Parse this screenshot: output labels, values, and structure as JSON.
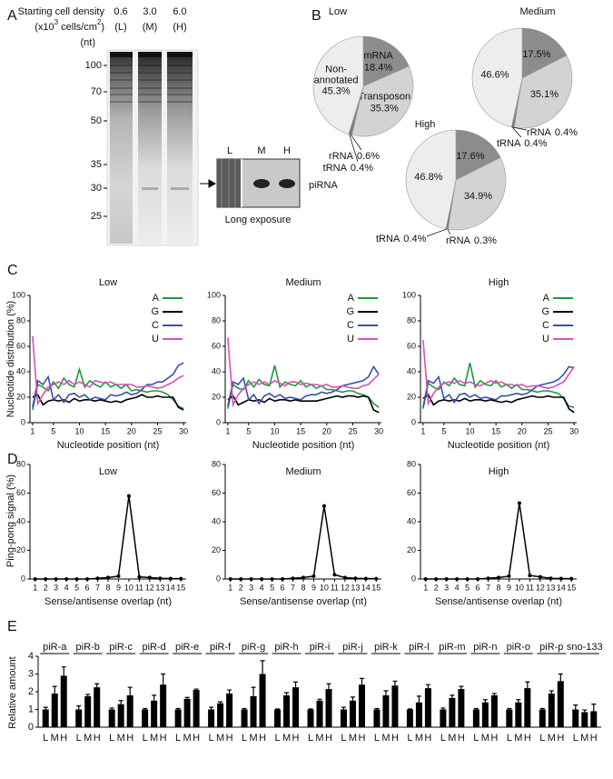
{
  "panel_labels": [
    "A",
    "B",
    "C",
    "D",
    "E"
  ],
  "gel": {
    "header": "Starting cell density",
    "unit_parts": [
      "(x10",
      "3",
      " cells/cm",
      "2",
      ")"
    ],
    "lanes": [
      {
        "density": "0.6",
        "code": "(L)"
      },
      {
        "density": "3.0",
        "code": "(M)"
      },
      {
        "density": "6.0",
        "code": "(H)"
      }
    ],
    "size_unit": "(nt)",
    "markers": [
      100,
      70,
      50,
      35,
      30,
      25
    ],
    "inset": {
      "lanes": [
        "L",
        "M",
        "H"
      ],
      "band": "piRNA",
      "caption": "Long exposure"
    }
  },
  "chart_data": [
    {
      "type": "pie",
      "title": "Low",
      "categories": [
        "mRNA",
        "Transposon",
        "rRNA",
        "tRNA",
        "Non-annotated"
      ],
      "values": [
        18.4,
        35.3,
        0.6,
        0.4,
        45.3
      ],
      "value_labels": [
        "18.4%",
        "35.3%",
        "0.6%",
        "0.4%",
        "45.3%"
      ],
      "colors": [
        "#8c8c8c",
        "#d3d3d3",
        "#6e6e6e",
        "#555555",
        "#ededed"
      ]
    },
    {
      "type": "pie",
      "title": "Medium",
      "categories": [
        null,
        null,
        "rRNA",
        "tRNA",
        null
      ],
      "values": [
        17.5,
        35.1,
        0.4,
        0.4,
        46.6
      ],
      "value_labels": [
        "17.5%",
        "35.1%",
        "0.4%",
        "0.4%",
        "46.6%"
      ],
      "colors": [
        "#8c8c8c",
        "#d3d3d3",
        "#6e6e6e",
        "#555555",
        "#ededed"
      ]
    },
    {
      "type": "pie",
      "title": "High",
      "categories": [
        null,
        null,
        "rRNA",
        "tRNA",
        null
      ],
      "values": [
        17.6,
        34.9,
        0.3,
        0.4,
        46.8
      ],
      "value_labels": [
        "17.6%",
        "34.9%",
        "0.3%",
        "0.4%",
        "46.8%"
      ],
      "colors": [
        "#8c8c8c",
        "#d3d3d3",
        "#6e6e6e",
        "#555555",
        "#ededed"
      ]
    },
    {
      "type": "line",
      "title": "Low",
      "ylabel": "Nucleotide distribution (%)",
      "xlabel": "Nucleotide position (nt)",
      "x": [
        1,
        2,
        3,
        4,
        5,
        6,
        7,
        8,
        9,
        10,
        11,
        12,
        13,
        14,
        15,
        16,
        17,
        18,
        19,
        20,
        21,
        22,
        23,
        24,
        25,
        26,
        27,
        28,
        29,
        30
      ],
      "xlim": [
        0.5,
        30.5
      ],
      "xticks": [
        1,
        5,
        10,
        15,
        20,
        25,
        30
      ],
      "ylim": [
        0,
        100
      ],
      "yticks": [
        0,
        20,
        40,
        60,
        80,
        100
      ],
      "legend": "upper right",
      "series": [
        {
          "name": "A",
          "color": "#1f9a3c",
          "values": [
            10,
            30,
            28,
            25,
            32,
            27,
            35,
            30,
            28,
            42,
            28,
            33,
            30,
            28,
            32,
            28,
            30,
            27,
            30,
            25,
            26,
            25,
            24,
            25,
            25,
            24,
            22,
            18,
            13,
            11
          ]
        },
        {
          "name": "G",
          "color": "#000000",
          "values": [
            20,
            22,
            14,
            17,
            18,
            17,
            18,
            16,
            19,
            17,
            18,
            18,
            17,
            18,
            17,
            16,
            17,
            16,
            18,
            19,
            20,
            22,
            20,
            20,
            21,
            20,
            20,
            20,
            12,
            10
          ]
        },
        {
          "name": "C",
          "color": "#3a4fa8",
          "values": [
            12,
            33,
            30,
            36,
            18,
            22,
            16,
            22,
            23,
            20,
            22,
            18,
            20,
            19,
            18,
            22,
            21,
            22,
            24,
            22,
            23,
            26,
            30,
            30,
            32,
            32,
            35,
            38,
            45,
            47
          ]
        },
        {
          "name": "U",
          "color": "#d452b8",
          "values": [
            68,
            15,
            22,
            28,
            30,
            32,
            30,
            33,
            30,
            32,
            30,
            28,
            33,
            32,
            31,
            32,
            30,
            30,
            30,
            30,
            28,
            28,
            29,
            28,
            27,
            28,
            30,
            32,
            35,
            37
          ]
        }
      ]
    },
    {
      "type": "line",
      "title": "Medium",
      "xlabel": "Nucleotide position (nt)",
      "x": [
        1,
        2,
        3,
        4,
        5,
        6,
        7,
        8,
        9,
        10,
        11,
        12,
        13,
        14,
        15,
        16,
        17,
        18,
        19,
        20,
        21,
        22,
        23,
        24,
        25,
        26,
        27,
        28,
        29,
        30
      ],
      "xlim": [
        0.5,
        30.5
      ],
      "xticks": [
        1,
        5,
        10,
        15,
        20,
        25,
        30
      ],
      "ylim": [
        0,
        100
      ],
      "yticks": [
        0,
        20,
        40,
        60,
        80,
        100
      ],
      "legend": "upper right",
      "series": [
        {
          "name": "A",
          "color": "#1f9a3c",
          "values": [
            11,
            30,
            27,
            26,
            33,
            28,
            34,
            30,
            29,
            45,
            28,
            32,
            30,
            29,
            33,
            28,
            30,
            27,
            29,
            26,
            26,
            25,
            24,
            25,
            25,
            23,
            22,
            20,
            15,
            12
          ]
        },
        {
          "name": "G",
          "color": "#000000",
          "values": [
            18,
            21,
            14,
            16,
            18,
            17,
            18,
            16,
            19,
            17,
            18,
            18,
            17,
            18,
            17,
            17,
            17,
            17,
            18,
            19,
            20,
            21,
            20,
            21,
            21,
            20,
            21,
            20,
            10,
            8
          ]
        },
        {
          "name": "C",
          "color": "#3a4fa8",
          "values": [
            13,
            32,
            30,
            35,
            18,
            22,
            15,
            21,
            23,
            20,
            22,
            19,
            20,
            19,
            18,
            21,
            22,
            22,
            24,
            23,
            24,
            26,
            29,
            30,
            31,
            32,
            33,
            36,
            44,
            38
          ]
        },
        {
          "name": "U",
          "color": "#d452b8",
          "values": [
            67,
            14,
            22,
            27,
            30,
            32,
            30,
            32,
            30,
            33,
            31,
            29,
            32,
            32,
            30,
            31,
            30,
            30,
            29,
            30,
            28,
            28,
            29,
            28,
            27,
            27,
            29,
            30,
            34,
            38
          ]
        }
      ]
    },
    {
      "type": "line",
      "title": "High",
      "xlabel": "Nucleotide position (nt)",
      "x": [
        1,
        2,
        3,
        4,
        5,
        6,
        7,
        8,
        9,
        10,
        11,
        12,
        13,
        14,
        15,
        16,
        17,
        18,
        19,
        20,
        21,
        22,
        23,
        24,
        25,
        26,
        27,
        28,
        29,
        30
      ],
      "xlim": [
        0.5,
        30.5
      ],
      "xticks": [
        1,
        5,
        10,
        15,
        20,
        25,
        30
      ],
      "ylim": [
        0,
        100
      ],
      "yticks": [
        0,
        20,
        40,
        60,
        80,
        100
      ],
      "legend": "upper right",
      "series": [
        {
          "name": "A",
          "color": "#1f9a3c",
          "values": [
            11,
            31,
            28,
            26,
            32,
            29,
            35,
            30,
            29,
            47,
            28,
            33,
            30,
            29,
            33,
            28,
            30,
            27,
            30,
            26,
            26,
            25,
            24,
            25,
            25,
            24,
            23,
            19,
            13,
            12
          ]
        },
        {
          "name": "G",
          "color": "#000000",
          "values": [
            19,
            22,
            14,
            17,
            18,
            17,
            18,
            17,
            19,
            17,
            18,
            18,
            17,
            18,
            17,
            16,
            17,
            16,
            18,
            19,
            20,
            21,
            20,
            20,
            21,
            20,
            20,
            20,
            11,
            8
          ]
        },
        {
          "name": "C",
          "color": "#3a4fa8",
          "values": [
            12,
            33,
            31,
            36,
            19,
            22,
            16,
            22,
            23,
            20,
            22,
            19,
            20,
            19,
            18,
            21,
            21,
            22,
            23,
            22,
            23,
            26,
            29,
            30,
            31,
            32,
            34,
            38,
            44,
            43
          ]
        },
        {
          "name": "U",
          "color": "#d452b8",
          "values": [
            65,
            15,
            23,
            28,
            31,
            32,
            31,
            33,
            31,
            32,
            30,
            29,
            31,
            33,
            31,
            32,
            30,
            30,
            29,
            30,
            28,
            29,
            29,
            28,
            27,
            28,
            30,
            32,
            38,
            44
          ]
        }
      ]
    },
    {
      "type": "line",
      "title": "Low",
      "ylabel": "Ping-pong signal (%)",
      "xlabel": "Sense/antisense overlap (nt)",
      "color": "#000000",
      "x": [
        1,
        2,
        3,
        4,
        5,
        6,
        7,
        8,
        9,
        10,
        11,
        12,
        13,
        14,
        15
      ],
      "xlim": [
        0.5,
        15.5
      ],
      "xticks": [
        1,
        2,
        3,
        4,
        5,
        6,
        7,
        8,
        9,
        10,
        11,
        12,
        13,
        14,
        15
      ],
      "ylim": [
        0,
        80
      ],
      "yticks": [
        0,
        20,
        40,
        60,
        80
      ],
      "values": [
        0,
        0,
        0,
        0,
        0,
        0,
        0.5,
        1,
        2,
        58,
        1.5,
        1,
        0.5,
        0.3,
        0.2
      ]
    },
    {
      "type": "line",
      "title": "Medium",
      "xlabel": "Sense/antisense overlap (nt)",
      "color": "#000000",
      "x": [
        1,
        2,
        3,
        4,
        5,
        6,
        7,
        8,
        9,
        10,
        11,
        12,
        13,
        14,
        15
      ],
      "xlim": [
        0.5,
        15.5
      ],
      "xticks": [
        1,
        2,
        3,
        4,
        5,
        6,
        7,
        8,
        9,
        10,
        11,
        12,
        13,
        14,
        15
      ],
      "ylim": [
        0,
        80
      ],
      "yticks": [
        0,
        20,
        40,
        60,
        80
      ],
      "values": [
        0,
        0,
        0,
        0,
        0,
        0,
        0.5,
        1,
        2,
        51,
        3,
        1,
        0.5,
        0.3,
        0.2
      ]
    },
    {
      "type": "line",
      "title": "High",
      "xlabel": "Sense/antisense overlap (nt)",
      "color": "#000000",
      "x": [
        1,
        2,
        3,
        4,
        5,
        6,
        7,
        8,
        9,
        10,
        11,
        12,
        13,
        14,
        15
      ],
      "xlim": [
        0.5,
        15.5
      ],
      "xticks": [
        1,
        2,
        3,
        4,
        5,
        6,
        7,
        8,
        9,
        10,
        11,
        12,
        13,
        14,
        15
      ],
      "ylim": [
        0,
        80
      ],
      "yticks": [
        0,
        20,
        40,
        60,
        80
      ],
      "values": [
        0,
        0,
        0,
        0,
        0,
        0,
        0.5,
        1,
        2,
        53,
        2.5,
        1.5,
        0.5,
        0.3,
        0.2
      ]
    },
    {
      "type": "bar",
      "ylabel": "Relative amount",
      "ylim": [
        0,
        4
      ],
      "yticks": [
        0,
        1,
        2,
        3,
        4
      ],
      "color": "#000000",
      "categories": [
        "piR-a",
        "piR-b",
        "piR-c",
        "piR-d",
        "piR-e",
        "piR-f",
        "piR-g",
        "piR-h",
        "piR-i",
        "piR-j",
        "piR-k",
        "piR-l",
        "piR-m",
        "piR-n",
        "piR-o",
        "piR-p",
        "sno-133"
      ],
      "series": [
        {
          "name": "L",
          "values": [
            1,
            1,
            1,
            1,
            1,
            1,
            1,
            1,
            1,
            1,
            1,
            1,
            1,
            1,
            1,
            1,
            1
          ],
          "errors": [
            0.12,
            0.2,
            0.08,
            0.05,
            0.05,
            0.12,
            0.05,
            0.03,
            0.03,
            0.12,
            0.05,
            0.03,
            0.08,
            0.05,
            0.05,
            0.05,
            0.25
          ]
        },
        {
          "name": "M",
          "values": [
            1.9,
            1.75,
            1.3,
            1.5,
            1.6,
            1.35,
            1.75,
            1.8,
            1.5,
            1.5,
            1.8,
            1.4,
            1.65,
            1.4,
            1.4,
            1.9,
            0.85
          ],
          "errors": [
            0.4,
            0.1,
            0.2,
            0.3,
            0.08,
            0.08,
            0.5,
            0.15,
            0.08,
            0.2,
            0.25,
            0.35,
            0.15,
            0.15,
            0.15,
            0.15,
            0.12
          ]
        },
        {
          "name": "H",
          "values": [
            2.9,
            2.25,
            1.8,
            2.4,
            2.1,
            1.9,
            3.0,
            2.25,
            2.15,
            2.4,
            2.35,
            2.2,
            2.15,
            1.8,
            2.2,
            2.6,
            0.9
          ],
          "errors": [
            0.5,
            0.2,
            0.45,
            0.6,
            0.05,
            0.2,
            0.75,
            0.3,
            0.3,
            0.35,
            0.25,
            0.2,
            0.15,
            0.1,
            0.35,
            0.4,
            0.4
          ]
        }
      ]
    }
  ]
}
